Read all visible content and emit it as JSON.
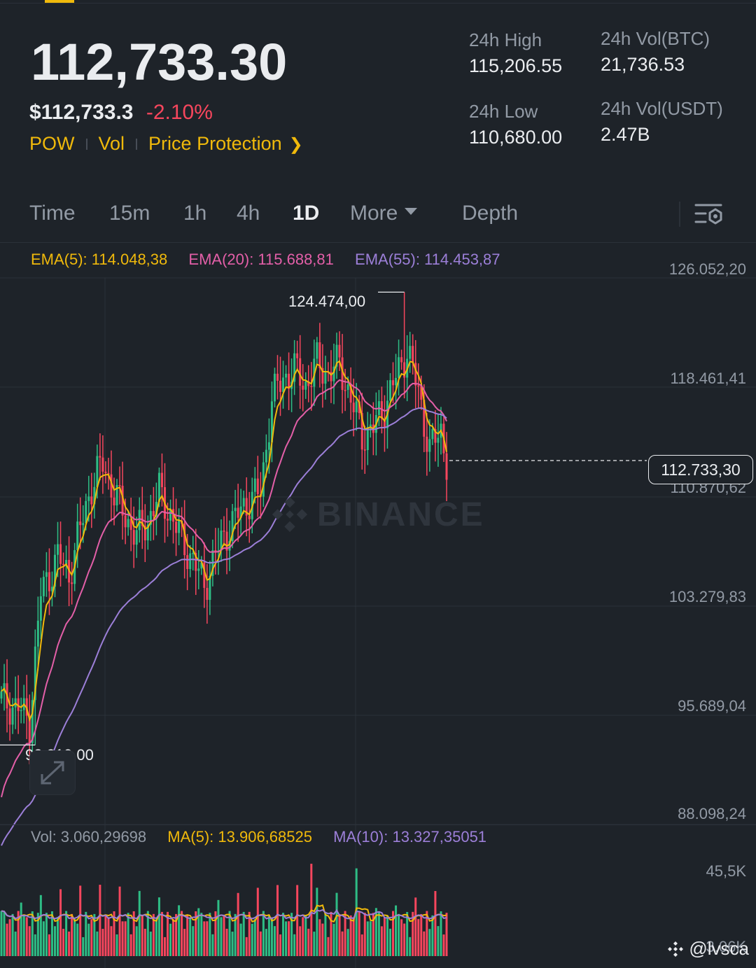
{
  "ticker": {
    "last_price": "112,733.30",
    "usd_price": "$112,733.3",
    "change_pct": "-2.10%",
    "links": {
      "pow": "POW",
      "vol": "Vol",
      "price_protection": "Price Protection"
    }
  },
  "stats": {
    "high_label": "24h High",
    "high_value": "115,206.55",
    "low_label": "24h Low",
    "low_value": "110,680.00",
    "vol_btc_label": "24h Vol(BTC)",
    "vol_btc_value": "21,736.53",
    "vol_usdt_label": "24h Vol(USDT)",
    "vol_usdt_value": "2.47B"
  },
  "tabs": [
    {
      "label": "Time"
    },
    {
      "label": "15m"
    },
    {
      "label": "1h"
    },
    {
      "label": "4h"
    },
    {
      "label": "1D",
      "active": true
    },
    {
      "label": "More"
    },
    {
      "label": "Depth"
    }
  ],
  "legend": {
    "ema5": "EMA(5): 114.048,38",
    "ema20": "EMA(20): 115.688,81",
    "ema55": "EMA(55): 114.453,87",
    "vol": "Vol: 3.060,29698",
    "ma5": "MA(5): 13.906,68525",
    "ma10": "MA(10): 13.327,35051"
  },
  "colors": {
    "up": "#2ebd85",
    "down": "#f6465d",
    "ema5": "#f0b90b",
    "ema20": "#e35fa8",
    "ema55": "#9c7fd8",
    "accent": "#f0b90b"
  },
  "chart": {
    "price_axis": [
      "126.052,20",
      "118.461,41",
      "110.870,62",
      "103.279,83",
      "95.689,04",
      "88.098,24"
    ],
    "volume_axis": [
      "45,5K",
      "3,06K"
    ],
    "current_price": "112.733,30",
    "high_marker": "124.474,00",
    "low_marker": "92.910,00",
    "watermark": "BINANCE"
  },
  "chart_data": {
    "type": "candlestick",
    "interval": "1D",
    "ylim": [
      88098.24,
      126052.2
    ],
    "current_price": 112733.3,
    "period_high": 124474.0,
    "period_low": 92910.0,
    "overlays": [
      "EMA(5)",
      "EMA(20)",
      "EMA(55)"
    ],
    "volume_ma": [
      "MA(5)",
      "MA(10)"
    ]
  },
  "footer": {
    "handle": "@lvsca"
  }
}
